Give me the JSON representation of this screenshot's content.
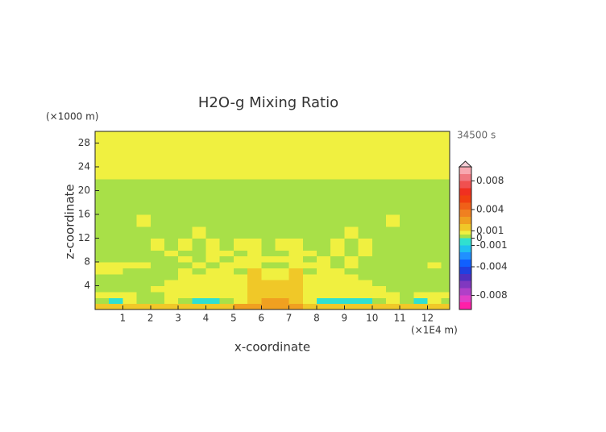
{
  "chart_data": {
    "type": "contour",
    "title": "H2O-g Mixing Ratio",
    "x_label": "x-coordinate",
    "y_label": "z-coordinate",
    "x_unit": "(×1E4 m)",
    "y_unit": "(×1000 m)",
    "time_label": "34500 s",
    "xlim": [
      0,
      12.8
    ],
    "ylim": [
      0,
      30
    ],
    "xticks": [
      1,
      2,
      3,
      4,
      5,
      6,
      7,
      8,
      9,
      10,
      11,
      12
    ],
    "yticks": [
      4,
      8,
      12,
      16,
      20,
      24,
      28
    ],
    "xbins": [
      0,
      0.5,
      1,
      1.5,
      2,
      2.5,
      3,
      3.5,
      4,
      4.5,
      5,
      5.5,
      6,
      6.5,
      7,
      7.5,
      8,
      8.5,
      9,
      9.5,
      10,
      10.5,
      11,
      11.5,
      12,
      12.5,
      12.8
    ],
    "ybins": [
      0,
      1,
      2,
      3,
      4,
      5,
      6,
      7,
      8,
      9,
      10,
      12,
      14,
      16,
      18,
      20,
      22,
      24,
      26,
      28,
      30
    ],
    "values": [
      [
        0.0015,
        0.0015,
        0.0015,
        0.0015,
        0.0015,
        0.0015,
        0.0015,
        0.0015,
        0.0015,
        0.0015,
        0.0025,
        0.0025,
        0.0025,
        0.0025,
        0.0025,
        0.0015,
        0.0015,
        0.0015,
        0.0015,
        0.0015,
        0.0015,
        0.0015,
        0.0015,
        0.0015,
        0.0015,
        0.0015
      ],
      [
        0.0003,
        -0.0005,
        0.0007,
        0.0003,
        0.0003,
        0.0007,
        0.0003,
        -0.0005,
        -0.0005,
        0.0003,
        0.0007,
        0.0015,
        0.0025,
        0.0025,
        0.0015,
        0.0007,
        -0.0005,
        -0.0005,
        -0.0005,
        -0.0005,
        0.0003,
        0.0007,
        0.0003,
        -0.0005,
        0.0007,
        0.0003
      ],
      [
        0.0007,
        0.0007,
        0.0007,
        0.0003,
        0.0003,
        0.0007,
        0.0007,
        0.0007,
        0.0007,
        0.0007,
        0.0007,
        0.0015,
        0.0015,
        0.0015,
        0.0015,
        0.0007,
        0.0007,
        0.0007,
        0.0007,
        0.0007,
        0.0007,
        0.0007,
        0.0003,
        0.0007,
        0.0007,
        0.0007
      ],
      [
        0.0003,
        0.0003,
        0.0003,
        0.0003,
        0.0007,
        0.0007,
        0.0007,
        0.0007,
        0.0007,
        0.0007,
        0.0007,
        0.0015,
        0.0015,
        0.0015,
        0.0015,
        0.0007,
        0.0007,
        0.0007,
        0.0007,
        0.0007,
        0.0007,
        0.0003,
        0.0003,
        0.0003,
        0.0003,
        0.0003
      ],
      [
        0.0003,
        0.0003,
        0.0003,
        0.0003,
        0.0003,
        0.0007,
        0.0007,
        0.0007,
        0.0007,
        0.0007,
        0.0007,
        0.0015,
        0.0015,
        0.0015,
        0.0015,
        0.0007,
        0.0007,
        0.0007,
        0.0007,
        0.0007,
        0.0003,
        0.0003,
        0.0003,
        0.0003,
        0.0003,
        0.0003
      ],
      [
        0.0003,
        0.0003,
        0.0003,
        0.0003,
        0.0003,
        0.0003,
        0.0007,
        0.0007,
        0.0007,
        0.0007,
        0.0007,
        0.0015,
        0.0007,
        0.0007,
        0.0015,
        0.0007,
        0.0007,
        0.0007,
        0.0007,
        0.0003,
        0.0003,
        0.0003,
        0.0003,
        0.0003,
        0.0003,
        0.0003
      ],
      [
        0.0007,
        0.0007,
        0.0003,
        0.0003,
        0.0003,
        0.0003,
        0.0007,
        0.0003,
        0.0007,
        0.0007,
        0.0003,
        0.0015,
        0.0007,
        0.0007,
        0.0015,
        0.0003,
        0.0007,
        0.0007,
        0.0003,
        0.0003,
        0.0003,
        0.0003,
        0.0003,
        0.0003,
        0.0003,
        0.0003
      ],
      [
        0.0007,
        0.0007,
        0.0007,
        0.0007,
        0.0003,
        0.0003,
        0.0003,
        0.0007,
        0.0003,
        0.0007,
        0.0007,
        0.0007,
        0.0003,
        0.0003,
        0.0007,
        0.0007,
        0.0007,
        0.0003,
        0.0007,
        0.0003,
        0.0003,
        0.0003,
        0.0003,
        0.0003,
        0.0007,
        0.0003
      ],
      [
        0.0003,
        0.0003,
        0.0003,
        0.0003,
        0.0003,
        0.0003,
        0.0007,
        0.0003,
        0.0007,
        0.0003,
        0.0007,
        0.0007,
        0.0007,
        0.0007,
        0.0007,
        0.0003,
        0.0007,
        0.0003,
        0.0007,
        0.0003,
        0.0003,
        0.0003,
        0.0003,
        0.0003,
        0.0003,
        0.0003
      ],
      [
        0.0003,
        0.0003,
        0.0003,
        0.0003,
        0.0003,
        0.0007,
        0.0003,
        0.0003,
        0.0007,
        0.0007,
        0.0003,
        0.0007,
        0.0003,
        0.0003,
        0.0007,
        0.0007,
        0.0003,
        0.0007,
        0.0003,
        0.0007,
        0.0003,
        0.0003,
        0.0003,
        0.0003,
        0.0003,
        0.0003
      ],
      [
        0.0003,
        0.0003,
        0.0003,
        0.0003,
        0.0007,
        0.0003,
        0.0007,
        0.0003,
        0.0007,
        0.0003,
        0.0007,
        0.0007,
        0.0003,
        0.0007,
        0.0007,
        0.0003,
        0.0003,
        0.0007,
        0.0003,
        0.0007,
        0.0003,
        0.0003,
        0.0003,
        0.0003,
        0.0003,
        0.0003
      ],
      [
        0.0003,
        0.0003,
        0.0003,
        0.0003,
        0.0003,
        0.0003,
        0.0003,
        0.0007,
        0.0003,
        0.0003,
        0.0003,
        0.0003,
        0.0003,
        0.0003,
        0.0003,
        0.0003,
        0.0003,
        0.0003,
        0.0007,
        0.0003,
        0.0003,
        0.0003,
        0.0003,
        0.0003,
        0.0003,
        0.0003
      ],
      [
        0.0003,
        0.0003,
        0.0003,
        0.0007,
        0.0003,
        0.0003,
        0.0003,
        0.0003,
        0.0003,
        0.0003,
        0.0003,
        0.0003,
        0.0003,
        0.0003,
        0.0003,
        0.0003,
        0.0003,
        0.0003,
        0.0003,
        0.0003,
        0.0003,
        0.0007,
        0.0003,
        0.0003,
        0.0003,
        0.0003
      ],
      [
        0.0003,
        0.0003,
        0.0003,
        0.0003,
        0.0003,
        0.0003,
        0.0003,
        0.0003,
        0.0003,
        0.0003,
        0.0003,
        0.0003,
        0.0003,
        0.0003,
        0.0003,
        0.0003,
        0.0003,
        0.0003,
        0.0003,
        0.0003,
        0.0003,
        0.0003,
        0.0003,
        0.0003,
        0.0003,
        0.0003
      ],
      [
        0.0003,
        0.0003,
        0.0003,
        0.0003,
        0.0003,
        0.0003,
        0.0003,
        0.0003,
        0.0003,
        0.0003,
        0.0003,
        0.0003,
        0.0003,
        0.0003,
        0.0003,
        0.0003,
        0.0003,
        0.0003,
        0.0003,
        0.0003,
        0.0003,
        0.0003,
        0.0003,
        0.0003,
        0.0003,
        0.0003
      ],
      [
        0.0003,
        0.0003,
        0.0003,
        0.0003,
        0.0003,
        0.0003,
        0.0003,
        0.0003,
        0.0003,
        0.0003,
        0.0003,
        0.0003,
        0.0003,
        0.0003,
        0.0003,
        0.0003,
        0.0003,
        0.0003,
        0.0003,
        0.0003,
        0.0003,
        0.0003,
        0.0003,
        0.0003,
        0.0003,
        0.0003
      ],
      [
        0.0007,
        0.0007,
        0.0007,
        0.0007,
        0.0007,
        0.0007,
        0.0007,
        0.0007,
        0.0007,
        0.0007,
        0.0007,
        0.0007,
        0.0007,
        0.0007,
        0.0007,
        0.0007,
        0.0007,
        0.0007,
        0.0007,
        0.0007,
        0.0007,
        0.0007,
        0.0007,
        0.0007,
        0.0007,
        0.0007
      ],
      [
        0.0007,
        0.0007,
        0.0007,
        0.0007,
        0.0007,
        0.0007,
        0.0007,
        0.0007,
        0.0007,
        0.0007,
        0.0007,
        0.0007,
        0.0007,
        0.0007,
        0.0007,
        0.0007,
        0.0007,
        0.0007,
        0.0007,
        0.0007,
        0.0007,
        0.0007,
        0.0007,
        0.0007,
        0.0007,
        0.0007
      ],
      [
        0.0007,
        0.0007,
        0.0007,
        0.0007,
        0.0007,
        0.0007,
        0.0007,
        0.0007,
        0.0007,
        0.0007,
        0.0007,
        0.0007,
        0.0007,
        0.0007,
        0.0007,
        0.0007,
        0.0007,
        0.0007,
        0.0007,
        0.0007,
        0.0007,
        0.0007,
        0.0007,
        0.0007,
        0.0007,
        0.0007
      ],
      [
        0.0007,
        0.0007,
        0.0007,
        0.0007,
        0.0007,
        0.0007,
        0.0007,
        0.0007,
        0.0007,
        0.0007,
        0.0007,
        0.0007,
        0.0007,
        0.0007,
        0.0007,
        0.0007,
        0.0007,
        0.0007,
        0.0007,
        0.0007,
        0.0007,
        0.0007,
        0.0007,
        0.0007,
        0.0007,
        0.0007
      ]
    ],
    "colorbar": {
      "levels": [
        -0.01,
        -0.009,
        -0.008,
        -0.007,
        -0.006,
        -0.005,
        -0.004,
        -0.003,
        -0.002,
        -0.001,
        0,
        0.0005,
        0.001,
        0.002,
        0.003,
        0.004,
        0.005,
        0.006,
        0.007,
        0.008,
        0.009,
        0.01
      ],
      "colors": [
        "#ff20a8",
        "#e040c8",
        "#b040c8",
        "#8038c0",
        "#5030c0",
        "#2040e0",
        "#1060ff",
        "#2090ff",
        "#20c0f0",
        "#30e0d0",
        "#a8e048",
        "#f0f040",
        "#f0c828",
        "#f0a020",
        "#f08020",
        "#f06018",
        "#f04010",
        "#f03020",
        "#f05050",
        "#f07880",
        "#f8a8b0"
      ],
      "over_color": "#f8d0d8",
      "ticks": [
        0.008,
        0.004,
        0.001,
        0,
        -0.001,
        -0.004,
        -0.008
      ]
    }
  }
}
